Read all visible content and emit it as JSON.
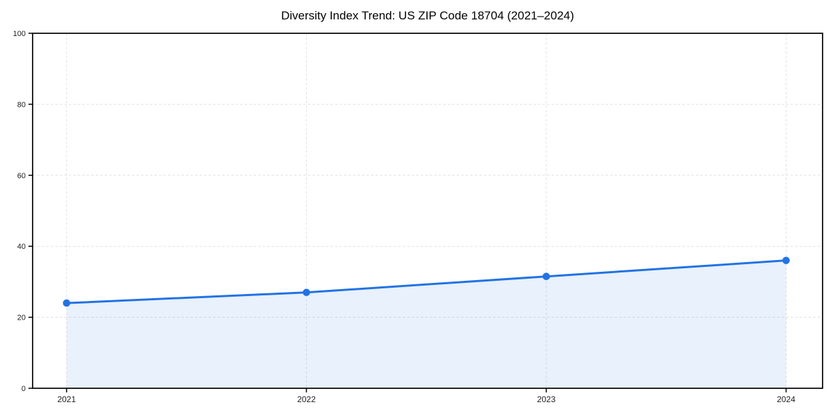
{
  "figure": {
    "background": "#ffffff"
  },
  "chart_data": {
    "type": "line",
    "title": "Diversity Index Trend: US ZIP Code 18704 (2021–2024)",
    "x": [
      "2021",
      "2022",
      "2023",
      "2024"
    ],
    "values": [
      24,
      27,
      31.5,
      36
    ],
    "xlabel": "",
    "ylabel": "",
    "ylim": [
      0,
      100
    ],
    "yticks": [
      0,
      20,
      40,
      60,
      80,
      100
    ],
    "grid": true,
    "grid_style": "dashed",
    "legend": "none",
    "area_fill": true,
    "marker": "circle",
    "colors": {
      "line": "#2273e2",
      "marker": "#2273e2",
      "area_fill": "#2273e2",
      "area_fill_opacity": 0.1,
      "grid": "#e1e1e1",
      "axis": "#000000",
      "tick_label": "#1c1c1c",
      "title": "#000000"
    }
  }
}
